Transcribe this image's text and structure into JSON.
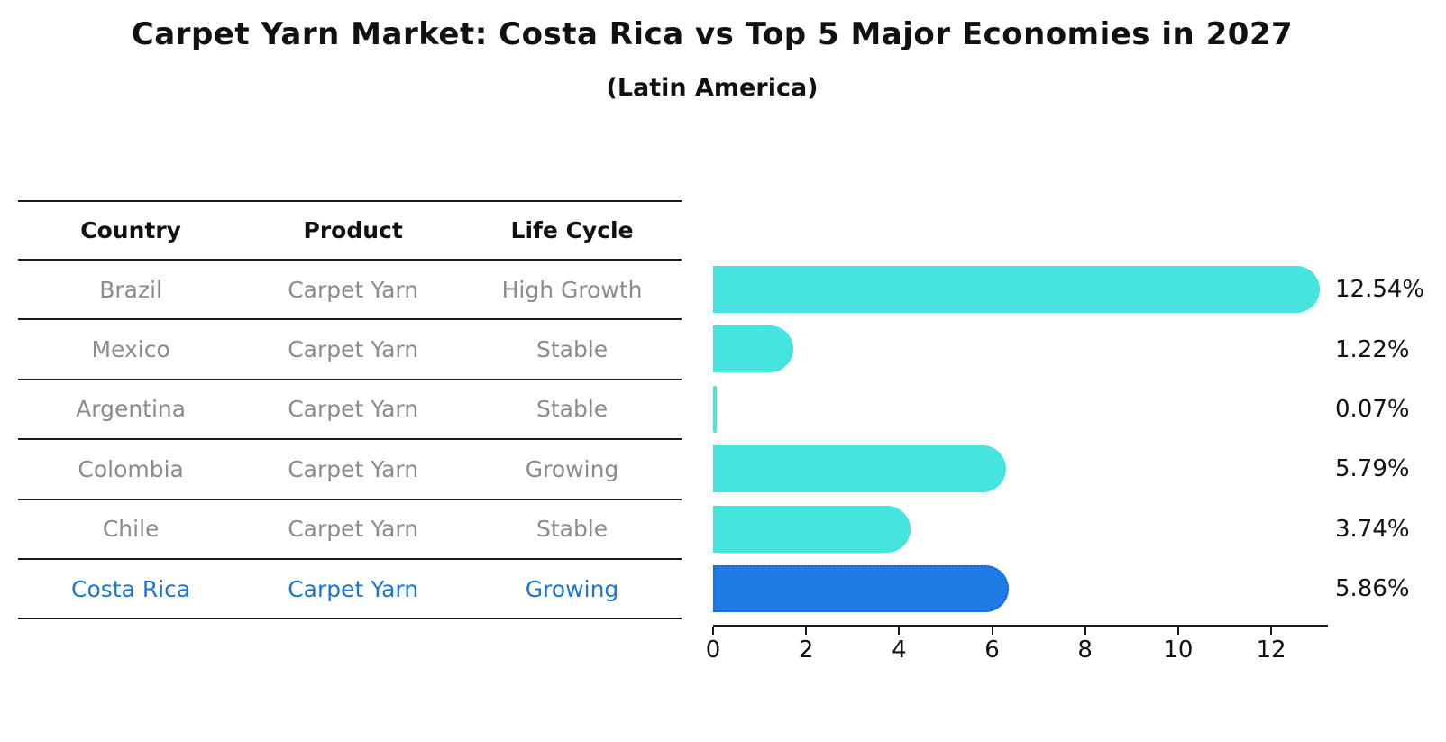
{
  "title": "Carpet Yarn Market: Costa Rica vs Top 5 Major Economies in 2027",
  "subtitle": "(Latin America)",
  "table": {
    "headers": [
      "Country",
      "Product",
      "Life Cycle"
    ],
    "rows": [
      {
        "country": "Brazil",
        "product": "Carpet Yarn",
        "life_cycle": "High Growth",
        "highlight": false
      },
      {
        "country": "Mexico",
        "product": "Carpet Yarn",
        "life_cycle": "Stable",
        "highlight": false
      },
      {
        "country": "Argentina",
        "product": "Carpet Yarn",
        "life_cycle": "Stable",
        "highlight": false
      },
      {
        "country": "Colombia",
        "product": "Carpet Yarn",
        "life_cycle": "Growing",
        "highlight": false
      },
      {
        "country": "Chile",
        "product": "Carpet Yarn",
        "life_cycle": "Stable",
        "highlight": false
      },
      {
        "country": "Costa Rica",
        "product": "Carpet Yarn",
        "life_cycle": "Growing",
        "highlight": true
      }
    ]
  },
  "chart_data": {
    "type": "bar",
    "orientation": "horizontal",
    "title": "Carpet Yarn Market: Costa Rica vs Top 5 Major Economies in 2027",
    "subtitle": "(Latin America)",
    "categories": [
      "Brazil",
      "Mexico",
      "Argentina",
      "Colombia",
      "Chile",
      "Costa Rica"
    ],
    "values": [
      12.54,
      1.22,
      0.07,
      5.79,
      3.74,
      5.86
    ],
    "value_labels": [
      "12.54%",
      "1.22%",
      "0.07%",
      "5.79%",
      "3.74%",
      "5.86%"
    ],
    "x_ticks": [
      0,
      2,
      4,
      6,
      8,
      10,
      12
    ],
    "xlim": [
      0,
      13.22
    ],
    "grid": false,
    "legend": false,
    "highlight_index": 5,
    "bar_color": "#45E4DE",
    "highlight_bar_color": "#1E7BE6",
    "highlight_border_color": "#1565D8",
    "highlight_text_color": "#1C75D2",
    "row_text_color": "#8B8B8B",
    "value_label_color": "#111111"
  }
}
